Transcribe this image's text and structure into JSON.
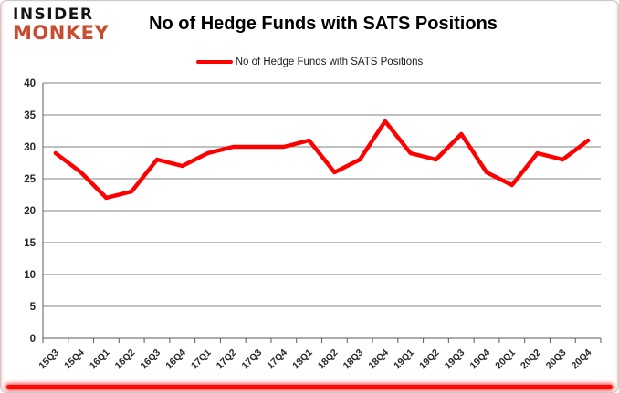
{
  "logo": {
    "line1": "INSIDER",
    "line2": "MONKEY",
    "color_line1": "#141414",
    "color_line2": "#c94b30"
  },
  "header": {
    "title": "No of Hedge Funds with SATS Positions"
  },
  "legend": {
    "label": "No of Hedge Funds with SATS Positions",
    "swatch_color": "#fe0000"
  },
  "chart_data": {
    "type": "line",
    "title": "No of Hedge Funds with SATS Positions",
    "categories": [
      "15Q3",
      "15Q4",
      "16Q1",
      "16Q2",
      "16Q3",
      "16Q4",
      "17Q1",
      "17Q2",
      "17Q3",
      "17Q4",
      "18Q1",
      "18Q2",
      "18Q3",
      "18Q4",
      "19Q1",
      "19Q2",
      "19Q3",
      "19Q4",
      "20Q1",
      "20Q2",
      "20Q3",
      "20Q4"
    ],
    "series": [
      {
        "name": "No of Hedge Funds with SATS Positions",
        "color": "#fe0000",
        "values": [
          29,
          26,
          22,
          23,
          28,
          27,
          29,
          30,
          30,
          30,
          31,
          26,
          28,
          34,
          29,
          28,
          32,
          26,
          24,
          29,
          28,
          31
        ]
      }
    ],
    "xlabel": "",
    "ylabel": "",
    "ylim": [
      0,
      40
    ],
    "yticks": [
      0,
      5,
      10,
      15,
      20,
      25,
      30,
      35,
      40
    ],
    "grid": true,
    "legend_position": "top",
    "grid_color": "#808080",
    "axis_color": "#595959",
    "tick_label_color": "#262626"
  }
}
